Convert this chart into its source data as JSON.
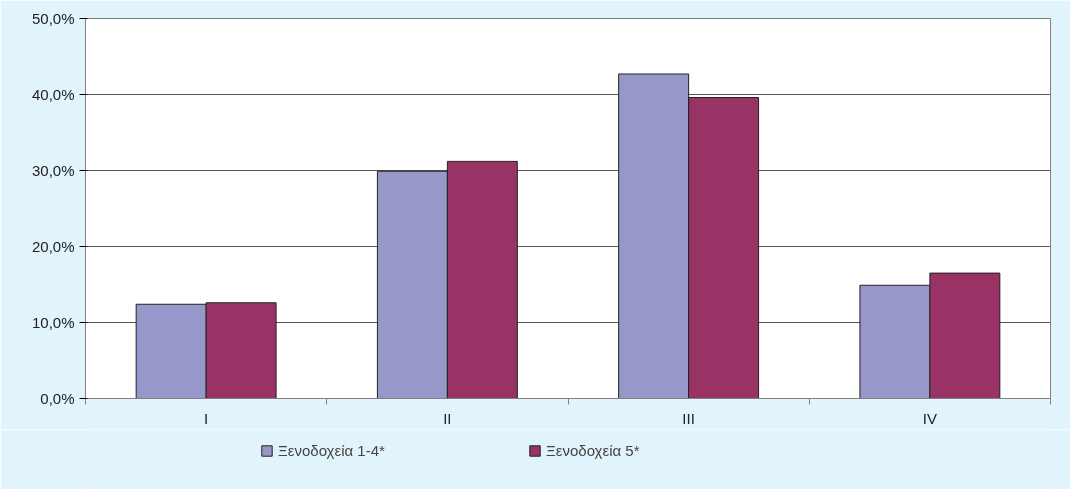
{
  "chart_data": {
    "type": "bar",
    "categories": [
      "I",
      "II",
      "III",
      "IV"
    ],
    "series": [
      {
        "name": "Ξενοδοχεία 1-4*",
        "color": "#9797c9",
        "values": [
          12.4,
          29.9,
          42.7,
          14.9
        ]
      },
      {
        "name": "Ξενοδοχεία 5*",
        "color": "#993366",
        "values": [
          12.6,
          31.2,
          39.6,
          16.5
        ]
      }
    ],
    "ylim": [
      0,
      50
    ],
    "yticks": [
      {
        "value": 0,
        "label": "0,0%"
      },
      {
        "value": 10,
        "label": "10,0%"
      },
      {
        "value": 20,
        "label": "20,0%"
      },
      {
        "value": 30,
        "label": "30,0%"
      },
      {
        "value": 40,
        "label": "40,0%"
      },
      {
        "value": 50,
        "label": "50,0%"
      }
    ],
    "grid": "y",
    "legend": "bottom"
  }
}
